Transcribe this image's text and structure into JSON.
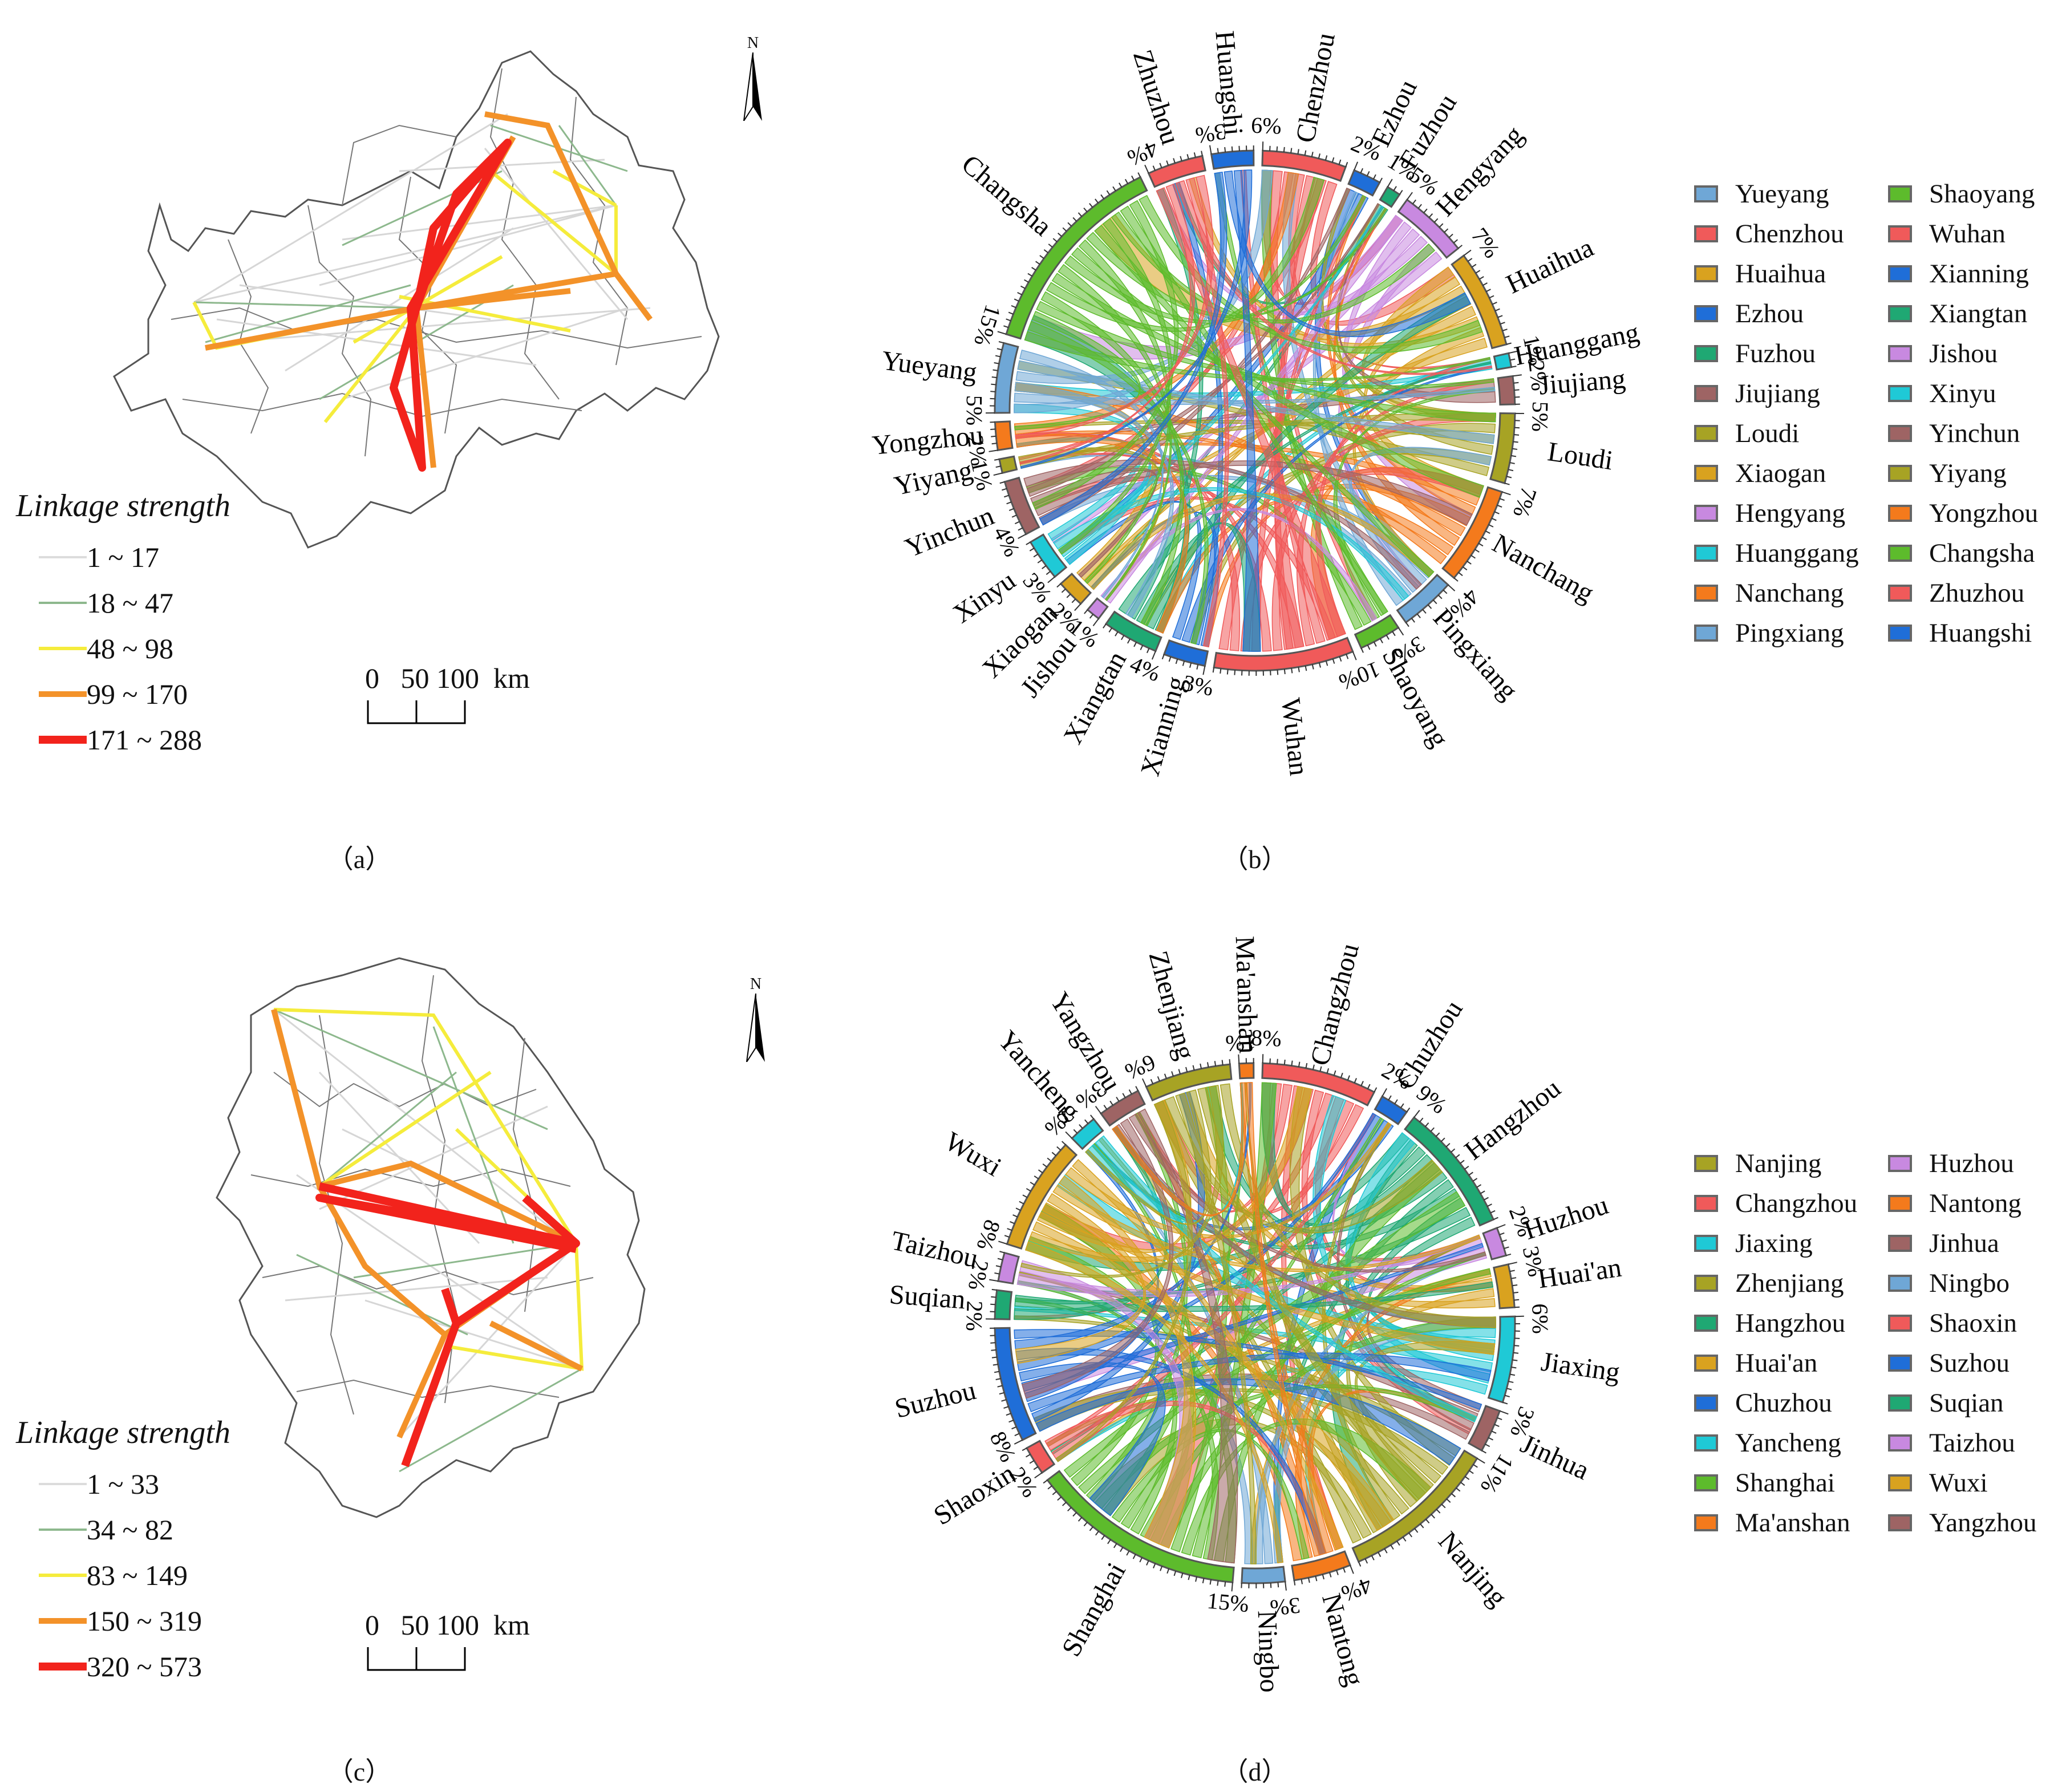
{
  "panel_a": {
    "caption": "（a）",
    "north": "N",
    "legend_title": "Linkage strength",
    "legend": [
      {
        "label": "1 ~ 17",
        "color": "#dcdcdc",
        "width": 4
      },
      {
        "label": "18 ~ 47",
        "color": "#8db88d",
        "width": 4
      },
      {
        "label": "48 ~ 98",
        "color": "#f5ec3c",
        "width": 6
      },
      {
        "label": "99 ~ 170",
        "color": "#f39229",
        "width": 10
      },
      {
        "label": "171 ~ 288",
        "color": "#f2231c",
        "width": 14
      }
    ],
    "scale_label": "0   50 100  km"
  },
  "panel_b": {
    "caption": "（b）",
    "legend": [
      {
        "name": "Yueyang",
        "color": "#6fa7d6"
      },
      {
        "name": "Shaoyang",
        "color": "#5dbb2c"
      },
      {
        "name": "Chenzhou",
        "color": "#f05a5a"
      },
      {
        "name": "Wuhan",
        "color": "#f05a5a"
      },
      {
        "name": "Huaihua",
        "color": "#d9a21f"
      },
      {
        "name": "Xianning",
        "color": "#1f6ed8"
      },
      {
        "name": "Ezhou",
        "color": "#1f6ed8"
      },
      {
        "name": "Xiangtan",
        "color": "#1fa873"
      },
      {
        "name": "Fuzhou",
        "color": "#1fa873"
      },
      {
        "name": "Jishou",
        "color": "#c889e0"
      },
      {
        "name": "Jiujiang",
        "color": "#9e6464"
      },
      {
        "name": "Xinyu",
        "color": "#1fc9d6"
      },
      {
        "name": "Loudi",
        "color": "#a7a324"
      },
      {
        "name": "Yinchun",
        "color": "#9e6464"
      },
      {
        "name": "Xiaogan",
        "color": "#d9a21f"
      },
      {
        "name": "Yiyang",
        "color": "#a7a324"
      },
      {
        "name": "Hengyang",
        "color": "#c889e0"
      },
      {
        "name": "Yongzhou",
        "color": "#f47a1c"
      },
      {
        "name": "Huanggang",
        "color": "#1fc9d6"
      },
      {
        "name": "Changsha",
        "color": "#5dbb2c"
      },
      {
        "name": "Nanchang",
        "color": "#f47a1c"
      },
      {
        "name": "Zhuzhou",
        "color": "#f05a5a"
      },
      {
        "name": "Pingxiang",
        "color": "#6fa7d6"
      },
      {
        "name": "Huangshi",
        "color": "#1f6ed8"
      }
    ],
    "sectors": [
      {
        "name": "Chenzhou",
        "color": "#f05a5a",
        "size": 6,
        "tick": "6%"
      },
      {
        "name": "Ezhou",
        "color": "#1f6ed8",
        "size": 2,
        "tick": "2%"
      },
      {
        "name": "Fuzhou",
        "color": "#1fa873",
        "size": 1,
        "tick": "1%"
      },
      {
        "name": "Hengyang",
        "color": "#c889e0",
        "size": 5,
        "tick": "5%"
      },
      {
        "name": "Huaihua",
        "color": "#d9a21f",
        "size": 7,
        "tick": "7%"
      },
      {
        "name": "Huanggang",
        "color": "#1fc9d6",
        "size": 1,
        "tick": "1%"
      },
      {
        "name": "Jiujiang",
        "color": "#9e6464",
        "size": 2,
        "tick": "2%"
      },
      {
        "name": "Loudi",
        "color": "#a7a324",
        "size": 5,
        "tick": "5%"
      },
      {
        "name": "Nanchang",
        "color": "#f47a1c",
        "size": 7,
        "tick": "7%"
      },
      {
        "name": "Pingxiang",
        "color": "#6fa7d6",
        "size": 4,
        "tick": "4%"
      },
      {
        "name": "Shaoyang",
        "color": "#5dbb2c",
        "size": 3,
        "tick": "3%"
      },
      {
        "name": "Wuhan",
        "color": "#f05a5a",
        "size": 10,
        "tick": "10%"
      },
      {
        "name": "Xianning",
        "color": "#1f6ed8",
        "size": 3,
        "tick": "3%"
      },
      {
        "name": "Xiangtan",
        "color": "#1fa873",
        "size": 4,
        "tick": "4%"
      },
      {
        "name": "Jishou",
        "color": "#c889e0",
        "size": 1,
        "tick": "1%"
      },
      {
        "name": "Xiaogan",
        "color": "#d9a21f",
        "size": 2,
        "tick": "2%"
      },
      {
        "name": "Xinyu",
        "color": "#1fc9d6",
        "size": 3,
        "tick": "3%"
      },
      {
        "name": "Yinchun",
        "color": "#9e6464",
        "size": 4,
        "tick": "4%"
      },
      {
        "name": "Yiyang",
        "color": "#a7a324",
        "size": 1,
        "tick": "1%"
      },
      {
        "name": "Yongzhou",
        "color": "#f47a1c",
        "size": 2,
        "tick": "2%"
      },
      {
        "name": "Yueyang",
        "color": "#6fa7d6",
        "size": 5,
        "tick": "5%"
      },
      {
        "name": "Changsha",
        "color": "#5dbb2c",
        "size": 15,
        "tick": "15%"
      },
      {
        "name": "Zhuzhou",
        "color": "#f05a5a",
        "size": 4,
        "tick": "4%"
      },
      {
        "name": "Huangshi",
        "color": "#1f6ed8",
        "size": 3,
        "tick": "3%"
      }
    ]
  },
  "panel_c": {
    "caption": "（c）",
    "north": "N",
    "legend_title": "Linkage strength",
    "legend": [
      {
        "label": "1 ~ 33",
        "color": "#dcdcdc",
        "width": 4
      },
      {
        "label": "34 ~ 82",
        "color": "#8db88d",
        "width": 4
      },
      {
        "label": "83 ~ 149",
        "color": "#f5ec3c",
        "width": 6
      },
      {
        "label": "150 ~ 319",
        "color": "#f39229",
        "width": 10
      },
      {
        "label": "320 ~ 573",
        "color": "#f2231c",
        "width": 14
      }
    ],
    "scale_label": "0   50 100  km"
  },
  "panel_d": {
    "caption": "（d）",
    "legend": [
      {
        "name": "Nanjing",
        "color": "#a7a324"
      },
      {
        "name": "Huzhou",
        "color": "#c889e0"
      },
      {
        "name": "Changzhou",
        "color": "#f05a5a"
      },
      {
        "name": "Nantong",
        "color": "#f47a1c"
      },
      {
        "name": "Jiaxing",
        "color": "#1fc9d6"
      },
      {
        "name": "Jinhua",
        "color": "#9e6464"
      },
      {
        "name": "Zhenjiang",
        "color": "#a7a324"
      },
      {
        "name": "Ningbo",
        "color": "#6fa7d6"
      },
      {
        "name": "Hangzhou",
        "color": "#1fa873"
      },
      {
        "name": "Shaoxin",
        "color": "#f05a5a"
      },
      {
        "name": "Huai'an",
        "color": "#d9a21f"
      },
      {
        "name": "Suzhou",
        "color": "#1f6ed8"
      },
      {
        "name": "Chuzhou",
        "color": "#1f6ed8"
      },
      {
        "name": "Suqian",
        "color": "#1fa873"
      },
      {
        "name": "Yancheng",
        "color": "#1fc9d6"
      },
      {
        "name": "Taizhou",
        "color": "#c889e0"
      },
      {
        "name": "Shanghai",
        "color": "#5dbb2c"
      },
      {
        "name": "Wuxi",
        "color": "#d9a21f"
      },
      {
        "name": "Ma'anshan",
        "color": "#f47a1c"
      },
      {
        "name": "Yangzhou",
        "color": "#9e6464"
      }
    ],
    "sectors": [
      {
        "name": "Changzhou",
        "color": "#f05a5a",
        "size": 8,
        "tick": "8%"
      },
      {
        "name": "Chuzhou",
        "color": "#1f6ed8",
        "size": 2,
        "tick": "2%"
      },
      {
        "name": "Hangzhou",
        "color": "#1fa873",
        "size": 9,
        "tick": "9%"
      },
      {
        "name": "Huzhou",
        "color": "#c889e0",
        "size": 2,
        "tick": "2%"
      },
      {
        "name": "Huai'an",
        "color": "#d9a21f",
        "size": 3,
        "tick": "3%"
      },
      {
        "name": "Jiaxing",
        "color": "#1fc9d6",
        "size": 6,
        "tick": "6%"
      },
      {
        "name": "Jinhua",
        "color": "#9e6464",
        "size": 3,
        "tick": "3%"
      },
      {
        "name": "Nanjing",
        "color": "#a7a324",
        "size": 11,
        "tick": "11%"
      },
      {
        "name": "Nantong",
        "color": "#f47a1c",
        "size": 4,
        "tick": "4%"
      },
      {
        "name": "Ningbo",
        "color": "#6fa7d6",
        "size": 3,
        "tick": "3%"
      },
      {
        "name": "Shanghai",
        "color": "#5dbb2c",
        "size": 15,
        "tick": "15%"
      },
      {
        "name": "Shaoxin",
        "color": "#f05a5a",
        "size": 2,
        "tick": "2%"
      },
      {
        "name": "Suzhou",
        "color": "#1f6ed8",
        "size": 8,
        "tick": "8%"
      },
      {
        "name": "Suqian",
        "color": "#1fa873",
        "size": 2,
        "tick": "2%"
      },
      {
        "name": "Taizhou",
        "color": "#c889e0",
        "size": 2,
        "tick": "2%"
      },
      {
        "name": "Wuxi",
        "color": "#d9a21f",
        "size": 8,
        "tick": "8%"
      },
      {
        "name": "Yancheng",
        "color": "#1fc9d6",
        "size": 2,
        "tick": "2%"
      },
      {
        "name": "Yangzhou",
        "color": "#9e6464",
        "size": 3,
        "tick": "3%"
      },
      {
        "name": "Zhenjiang",
        "color": "#a7a324",
        "size": 6,
        "tick": "6%"
      },
      {
        "name": "Ma'anshan",
        "color": "#f47a1c",
        "size": 1,
        "tick": "1%"
      }
    ]
  }
}
